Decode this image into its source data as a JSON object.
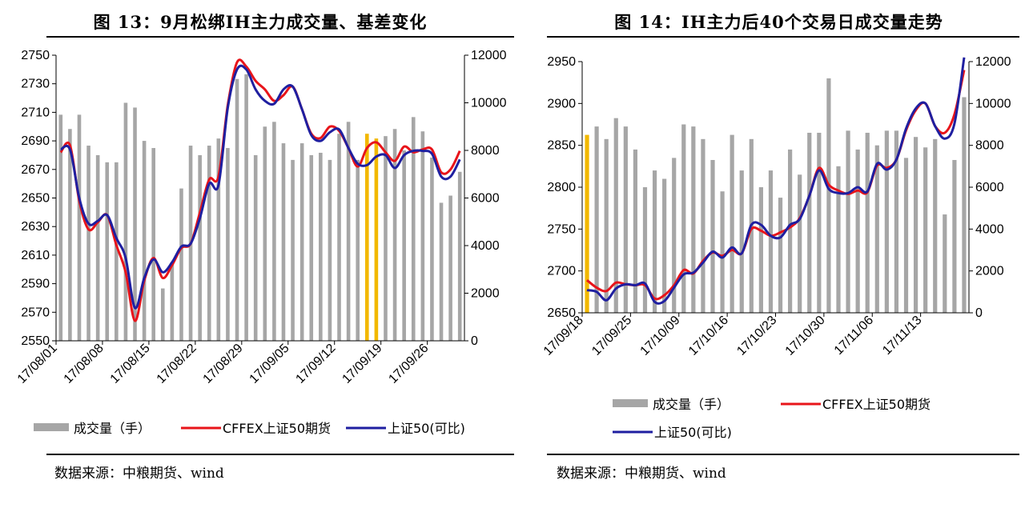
{
  "chart_data": [
    {
      "type": "bar+line",
      "title": "图 13：9月松绑IH主力成交量、基差变化",
      "source": "数据来源：中粮期货、wind",
      "x_tick_labels": [
        "17/08/01",
        "17/08/08",
        "17/08/15",
        "17/08/22",
        "17/08/29",
        "17/09/05",
        "17/09/12",
        "17/09/19",
        "17/09/26"
      ],
      "x_tick_positions": [
        0,
        5,
        10,
        15,
        20,
        25,
        30,
        35,
        40
      ],
      "n_points": 44,
      "y_left": {
        "lim": [
          2550,
          2750
        ],
        "ticks": [
          2550,
          2570,
          2590,
          2610,
          2630,
          2650,
          2670,
          2690,
          2710,
          2730,
          2750
        ]
      },
      "y_right": {
        "lim": [
          0,
          12000
        ],
        "ticks": [
          0,
          2000,
          4000,
          6000,
          8000,
          10000,
          12000
        ]
      },
      "highlight_indices": [
        33,
        34
      ],
      "series": [
        {
          "name": "成交量（手）",
          "kind": "bar",
          "axis": "right",
          "color": "#a6a6a6",
          "highlight_color": "#f2b800",
          "values": [
            9500,
            8900,
            9500,
            8200,
            7800,
            7500,
            7500,
            10000,
            9800,
            8400,
            8100,
            2200,
            3300,
            6400,
            8200,
            7800,
            8200,
            8500,
            8100,
            11000,
            11200,
            7800,
            9000,
            9200,
            8300,
            7600,
            8300,
            7800,
            7900,
            7600,
            8700,
            9200,
            7600,
            8700,
            8500,
            8600,
            8900,
            8000,
            9400,
            8800,
            7700,
            5800,
            6100,
            7100
          ]
        },
        {
          "name": "CFFEX上证50期货",
          "kind": "line",
          "axis": "left",
          "color": "#e8141a",
          "values": [
            2682,
            2687,
            2648,
            2628,
            2633,
            2638,
            2617,
            2598,
            2564,
            2592,
            2608,
            2594,
            2603,
            2615,
            2618,
            2640,
            2663,
            2665,
            2715,
            2745,
            2742,
            2732,
            2726,
            2718,
            2722,
            2728,
            2712,
            2695,
            2692,
            2700,
            2697,
            2685,
            2672,
            2685,
            2689,
            2682,
            2676,
            2686,
            2682,
            2684,
            2684,
            2668,
            2670,
            2683
          ]
        },
        {
          "name": "上证50(可比)",
          "kind": "line",
          "axis": "left",
          "color": "#1f1fa0",
          "values": [
            2684,
            2684,
            2650,
            2632,
            2634,
            2638,
            2622,
            2608,
            2573,
            2594,
            2607,
            2598,
            2605,
            2616,
            2618,
            2636,
            2660,
            2659,
            2713,
            2740,
            2740,
            2726,
            2718,
            2716,
            2726,
            2728,
            2712,
            2694,
            2690,
            2696,
            2698,
            2685,
            2674,
            2673,
            2679,
            2680,
            2671,
            2680,
            2683,
            2683,
            2681,
            2665,
            2665,
            2677
          ]
        }
      ],
      "legend": [
        "成交量（手）",
        "CFFEX上证50期货",
        "上证50(可比)"
      ]
    },
    {
      "type": "bar+line",
      "title": "图 14：IH主力后40个交易日成交量走势",
      "source": "数据来源：中粮期货、wind",
      "x_tick_labels": [
        "17/09/18",
        "17/09/25",
        "17/10/09",
        "17/10/16",
        "17/10/23",
        "17/10/30",
        "17/11/06",
        "17/11/13"
      ],
      "x_tick_positions": [
        0,
        5,
        10,
        15,
        20,
        25,
        30,
        35
      ],
      "n_points": 40,
      "y_left": {
        "lim": [
          2650,
          2950
        ],
        "ticks": [
          2650,
          2700,
          2750,
          2800,
          2850,
          2900,
          2950
        ]
      },
      "y_right": {
        "lim": [
          0,
          12000
        ],
        "ticks": [
          0,
          2000,
          4000,
          6000,
          8000,
          10000,
          12000
        ]
      },
      "highlight_indices": [
        0
      ],
      "series": [
        {
          "name": "成交量（手）",
          "kind": "bar",
          "axis": "right",
          "color": "#a6a6a6",
          "highlight_color": "#f2b800",
          "values": [
            8500,
            8900,
            8300,
            9300,
            8900,
            7800,
            6000,
            6800,
            6400,
            7400,
            9000,
            8900,
            8300,
            7300,
            5800,
            8500,
            6800,
            8300,
            6000,
            6800,
            5500,
            7800,
            6600,
            8600,
            8600,
            11200,
            7000,
            8700,
            7800,
            8600,
            8000,
            8700,
            8700,
            7400,
            8400,
            7900,
            8300,
            4700,
            7300,
            10300
          ]
        },
        {
          "name": "CFFEX上证50期货",
          "kind": "line",
          "axis": "left",
          "color": "#e8141a",
          "values": [
            2689,
            2680,
            2676,
            2686,
            2684,
            2683,
            2683,
            2667,
            2671,
            2683,
            2701,
            2697,
            2712,
            2722,
            2718,
            2725,
            2721,
            2750,
            2748,
            2742,
            2746,
            2752,
            2763,
            2790,
            2823,
            2803,
            2796,
            2792,
            2796,
            2794,
            2826,
            2823,
            2833,
            2868,
            2892,
            2900,
            2873,
            2865,
            2887,
            2940
          ]
        },
        {
          "name": "上证50(可比)",
          "kind": "line",
          "axis": "left",
          "color": "#1f1fa0",
          "values": [
            2677,
            2675,
            2665,
            2679,
            2684,
            2683,
            2685,
            2663,
            2664,
            2680,
            2696,
            2698,
            2710,
            2723,
            2716,
            2728,
            2721,
            2755,
            2755,
            2742,
            2740,
            2755,
            2762,
            2790,
            2820,
            2798,
            2793,
            2793,
            2800,
            2795,
            2828,
            2821,
            2833,
            2870,
            2894,
            2900,
            2873,
            2858,
            2876,
            2955
          ]
        }
      ],
      "legend": [
        "成交量（手）",
        "CFFEX上证50期货",
        "上证50(可比)"
      ]
    }
  ]
}
